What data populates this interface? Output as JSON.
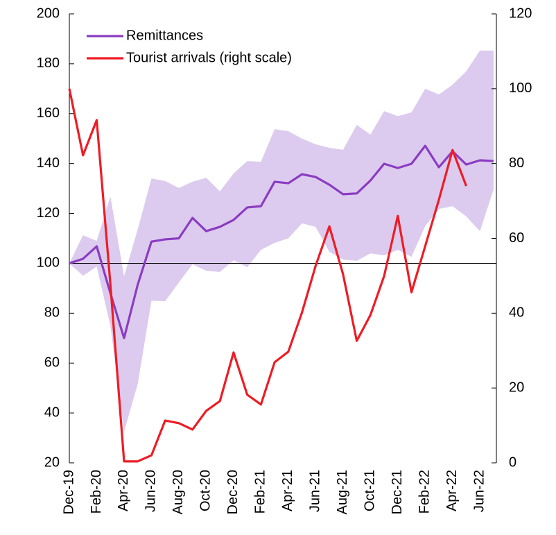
{
  "chart_data": {
    "type": "line",
    "categories": [
      "Dec-19",
      null,
      "Feb-20",
      null,
      "Apr-20",
      null,
      "Jun-20",
      null,
      "Aug-20",
      null,
      "Oct-20",
      null,
      "Dec-20",
      null,
      "Feb-21",
      null,
      "Apr-21",
      null,
      "Jun-21",
      null,
      "Aug-21",
      null,
      "Oct-21",
      null,
      "Dec-21",
      null,
      "Feb-22",
      null,
      "Apr-22",
      null,
      "Jun-22",
      null
    ],
    "series": [
      {
        "name": "Remittances",
        "color": "#8b3cc1",
        "values": [
          100,
          101.8,
          106.8,
          88,
          70,
          91.5,
          108.7,
          109.6,
          110,
          118.2,
          112.9,
          114.6,
          117.4,
          122.4,
          122.9,
          132.7,
          132.1,
          135.7,
          134.6,
          131.5,
          127.7,
          128,
          133.2,
          139.9,
          138.2,
          139.9,
          147.1,
          138.5,
          144.9,
          139.6,
          141.3,
          141
        ]
      },
      {
        "name": "Tourist arrivals (right scale)",
        "color": "#ee1c25",
        "axis": "y2",
        "values": [
          100,
          82.2,
          91.6,
          47.7,
          0.4,
          0.4,
          2,
          11.3,
          10.6,
          8.9,
          13.9,
          16.5,
          29.5,
          18.2,
          15.6,
          26.9,
          29.7,
          40.2,
          52.7,
          63.2,
          50.4,
          32.6,
          39.5,
          49.9,
          66,
          45.6,
          57.9,
          70.3,
          83.6,
          74,
          null,
          null
        ]
      }
    ],
    "band": {
      "color": "#dccbee",
      "upper": [
        100,
        111.2,
        109,
        126.8,
        94.8,
        113.7,
        134,
        133,
        130.2,
        132.7,
        134.3,
        128.8,
        136,
        141,
        140.7,
        153.8,
        153,
        150,
        147.7,
        146.3,
        145.5,
        155.5,
        151.6,
        161,
        159,
        160.5,
        170,
        167.7,
        171.6,
        177,
        185.3,
        185.3
      ],
      "lower": [
        100,
        95,
        98.7,
        75,
        32.5,
        51.7,
        85,
        84.8,
        92.3,
        99.6,
        97,
        96.5,
        101.2,
        98.4,
        105.4,
        108.2,
        110,
        116,
        114.6,
        104.6,
        101.5,
        101,
        104,
        103.2,
        105.4,
        102.6,
        114.9,
        121.8,
        122.9,
        118.8,
        112.9,
        129.6
      ]
    },
    "ylim": [
      20,
      200
    ],
    "yticks": [
      20,
      40,
      60,
      80,
      100,
      120,
      140,
      160,
      180,
      200
    ],
    "y2lim": [
      0,
      120
    ],
    "y2ticks": [
      0,
      20,
      40,
      60,
      80,
      100,
      120
    ],
    "hline": 100,
    "legend": "upper left"
  }
}
